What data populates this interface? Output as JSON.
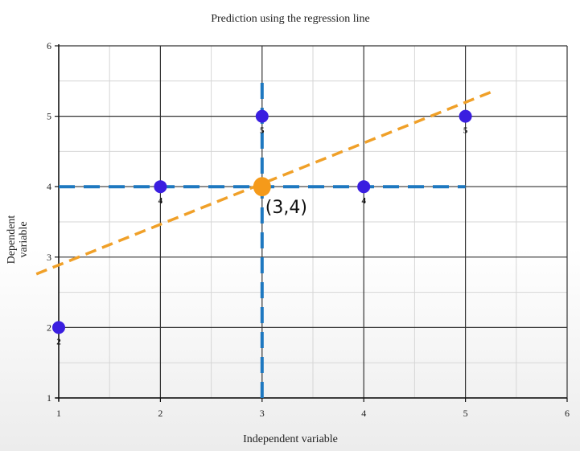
{
  "chart_data": {
    "type": "scatter",
    "title": "Prediction using the regression line",
    "xlabel": "Independent variable",
    "ylabel_lines": [
      "Dependent",
      "variable"
    ],
    "xlim": [
      1,
      6
    ],
    "ylim": [
      1,
      6
    ],
    "xticks": [
      1,
      2,
      3,
      4,
      5,
      6
    ],
    "yticks": [
      1,
      2,
      3,
      4,
      5,
      6
    ],
    "grid": true,
    "points": [
      {
        "x": 1,
        "y": 2,
        "label": "2"
      },
      {
        "x": 2,
        "y": 4,
        "label": "4"
      },
      {
        "x": 3,
        "y": 5,
        "label": "5"
      },
      {
        "x": 4,
        "y": 4,
        "label": "4"
      },
      {
        "x": 5,
        "y": 5,
        "label": "5"
      }
    ],
    "regression_line": {
      "x": [
        0.78,
        5.28
      ],
      "y": [
        2.76,
        5.36
      ]
    },
    "guide_lines": {
      "horizontal": {
        "y": 4,
        "x": [
          1,
          5
        ]
      },
      "vertical": {
        "x": 3,
        "y": [
          1,
          5.5
        ]
      }
    },
    "highlight": {
      "x": 3,
      "y": 4,
      "label": "(3,4)"
    },
    "colors": {
      "points": "#3a1ee0",
      "regression": "#f0a028",
      "guides": "#1e78c0",
      "highlight": "#f59a1a",
      "grid": "#333333",
      "minor_grid": "#d6d6d6"
    }
  }
}
